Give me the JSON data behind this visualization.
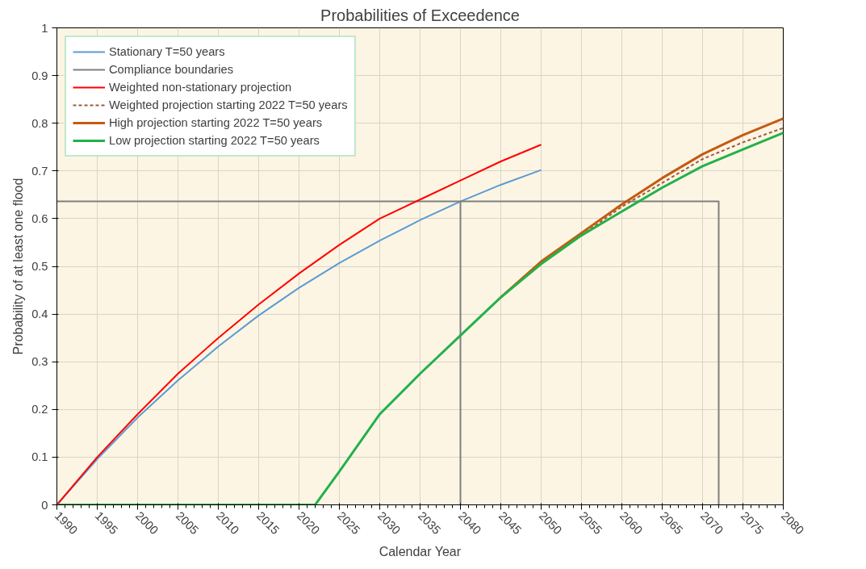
{
  "chart_data": {
    "type": "line",
    "title": "Probabilities of Exceedence",
    "xlabel": "Calendar Year",
    "ylabel": "Probability of at least one flood",
    "xlim": [
      1990,
      2080
    ],
    "xticks": [
      1990,
      1995,
      2000,
      2005,
      2010,
      2015,
      2020,
      2025,
      2030,
      2035,
      2040,
      2045,
      2050,
      2055,
      2060,
      2065,
      2070,
      2075,
      2080
    ],
    "ylim": [
      0,
      1
    ],
    "yticks": [
      0,
      0.1,
      0.2,
      0.3,
      0.4,
      0.5,
      0.6,
      0.7,
      0.8,
      0.9,
      1
    ],
    "grid": true,
    "legend": "top left",
    "marker": "none",
    "series": [
      {
        "name": "Stationary T=50 years",
        "color": "#5b9bd5",
        "x": [
          1990,
          1995,
          2000,
          2005,
          2010,
          2015,
          2020,
          2025,
          2030,
          2035,
          2040,
          2045,
          2050
        ],
        "values": [
          0,
          0.096,
          0.183,
          0.261,
          0.332,
          0.397,
          0.455,
          0.507,
          0.554,
          0.597,
          0.636,
          0.671,
          0.702
        ]
      },
      {
        "name": "Compliance boundaries",
        "color": "#7f7f7f",
        "x": [
          1990,
          2072,
          2072,
          2060,
          2040,
          2040
        ],
        "values": [
          0.636,
          0.636,
          0,
          null,
          0.636,
          0
        ]
      },
      {
        "name": "Weighted non-stationary projection",
        "color": "#ff0000",
        "x": [
          1990,
          1995,
          2000,
          2005,
          2010,
          2015,
          2020,
          2025,
          2030,
          2035,
          2040,
          2045,
          2050
        ],
        "values": [
          0,
          0.1,
          0.19,
          0.275,
          0.35,
          0.42,
          0.485,
          0.545,
          0.6,
          0.64,
          0.68,
          0.72,
          0.755
        ]
      },
      {
        "name": "Weighted projection starting 2022 T=50 years",
        "color": "#9e5a3c",
        "line_style": "dashed",
        "x": [
          2045,
          2050,
          2055,
          2060,
          2065,
          2070,
          2075,
          2080
        ],
        "values": [
          0.435,
          0.505,
          0.565,
          0.625,
          0.675,
          0.725,
          0.76,
          0.79
        ]
      },
      {
        "name": "High projection starting 2022 T=50 years",
        "color": "#c55a11",
        "x": [
          2045,
          2050,
          2055,
          2060,
          2065,
          2070,
          2075,
          2080
        ],
        "values": [
          0.435,
          0.51,
          0.57,
          0.63,
          0.685,
          0.735,
          0.775,
          0.81
        ]
      },
      {
        "name": "Low projection starting 2022 T=50 years",
        "color": "#22b14c",
        "x": [
          1990,
          2000,
          2010,
          2020,
          2022,
          2025,
          2030,
          2035,
          2040,
          2045,
          2050,
          2055,
          2060,
          2065,
          2070,
          2075,
          2080
        ],
        "values": [
          0,
          0,
          0,
          0,
          0,
          0.07,
          0.19,
          0.275,
          0.355,
          0.435,
          0.505,
          0.565,
          0.615,
          0.665,
          0.71,
          0.745,
          0.78
        ]
      }
    ]
  }
}
